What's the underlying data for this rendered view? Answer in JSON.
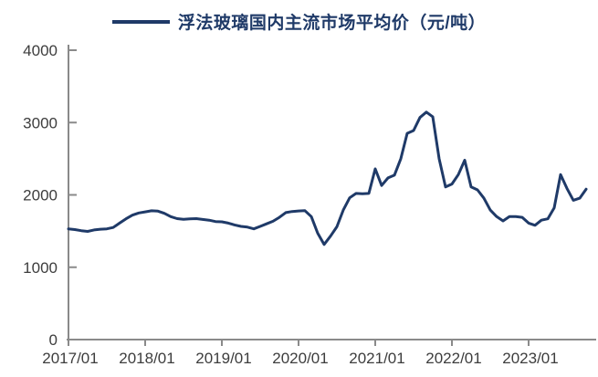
{
  "legend": {
    "series_label": "浮法玻璃国内主流市场平均价（元/吨）"
  },
  "chart_data": {
    "type": "line",
    "title": "浮法玻璃国内主流市场平均价（元/吨）",
    "series_name": "浮法玻璃国内主流市场平均价",
    "unit": "元/吨",
    "xlabel": "",
    "ylabel": "",
    "grid": false,
    "legend_position": "top-center",
    "ylim": [
      0,
      4000
    ],
    "y_ticks": [
      0,
      1000,
      2000,
      3000,
      4000
    ],
    "x_tick_labels": [
      "2017/01",
      "2018/01",
      "2019/01",
      "2020/01",
      "2021/01",
      "2022/01",
      "2023/01"
    ],
    "x": [
      "2017/01",
      "2017/02",
      "2017/03",
      "2017/04",
      "2017/05",
      "2017/06",
      "2017/07",
      "2017/08",
      "2017/09",
      "2017/10",
      "2017/11",
      "2017/12",
      "2018/01",
      "2018/02",
      "2018/03",
      "2018/04",
      "2018/05",
      "2018/06",
      "2018/07",
      "2018/08",
      "2018/09",
      "2018/10",
      "2018/11",
      "2018/12",
      "2019/01",
      "2019/02",
      "2019/03",
      "2019/04",
      "2019/05",
      "2019/06",
      "2019/07",
      "2019/08",
      "2019/09",
      "2019/10",
      "2019/11",
      "2019/12",
      "2020/01",
      "2020/02",
      "2020/03",
      "2020/04",
      "2020/05",
      "2020/06",
      "2020/07",
      "2020/08",
      "2020/09",
      "2020/10",
      "2020/11",
      "2020/12",
      "2021/01",
      "2021/02",
      "2021/03",
      "2021/04",
      "2021/05",
      "2021/06",
      "2021/07",
      "2021/08",
      "2021/09",
      "2021/10",
      "2021/11",
      "2021/12",
      "2022/01",
      "2022/02",
      "2022/03",
      "2022/04",
      "2022/05",
      "2022/06",
      "2022/07",
      "2022/08",
      "2022/09",
      "2022/10",
      "2022/11",
      "2022/12",
      "2023/01",
      "2023/02",
      "2023/03",
      "2023/04",
      "2023/05",
      "2023/06",
      "2023/07",
      "2023/08",
      "2023/09",
      "2023/10"
    ],
    "values": [
      1530,
      1520,
      1505,
      1495,
      1515,
      1525,
      1530,
      1550,
      1610,
      1670,
      1720,
      1750,
      1765,
      1780,
      1775,
      1745,
      1700,
      1672,
      1662,
      1668,
      1672,
      1660,
      1650,
      1632,
      1628,
      1610,
      1585,
      1565,
      1555,
      1530,
      1565,
      1600,
      1635,
      1690,
      1755,
      1770,
      1778,
      1782,
      1700,
      1470,
      1315,
      1430,
      1560,
      1790,
      1960,
      2020,
      2015,
      2020,
      2360,
      2130,
      2235,
      2272,
      2500,
      2850,
      2890,
      3070,
      3145,
      3080,
      2500,
      2110,
      2150,
      2280,
      2480,
      2110,
      2070,
      1955,
      1790,
      1700,
      1640,
      1700,
      1700,
      1690,
      1610,
      1580,
      1650,
      1670,
      1820,
      2280,
      2090,
      1925,
      1955,
      2080
    ],
    "colors": {
      "line": "#1f3a68",
      "legend_text": "#1f3a68",
      "axis": "#8a8a8a",
      "tick_label": "#3d3d3d",
      "background": "#ffffff"
    }
  }
}
